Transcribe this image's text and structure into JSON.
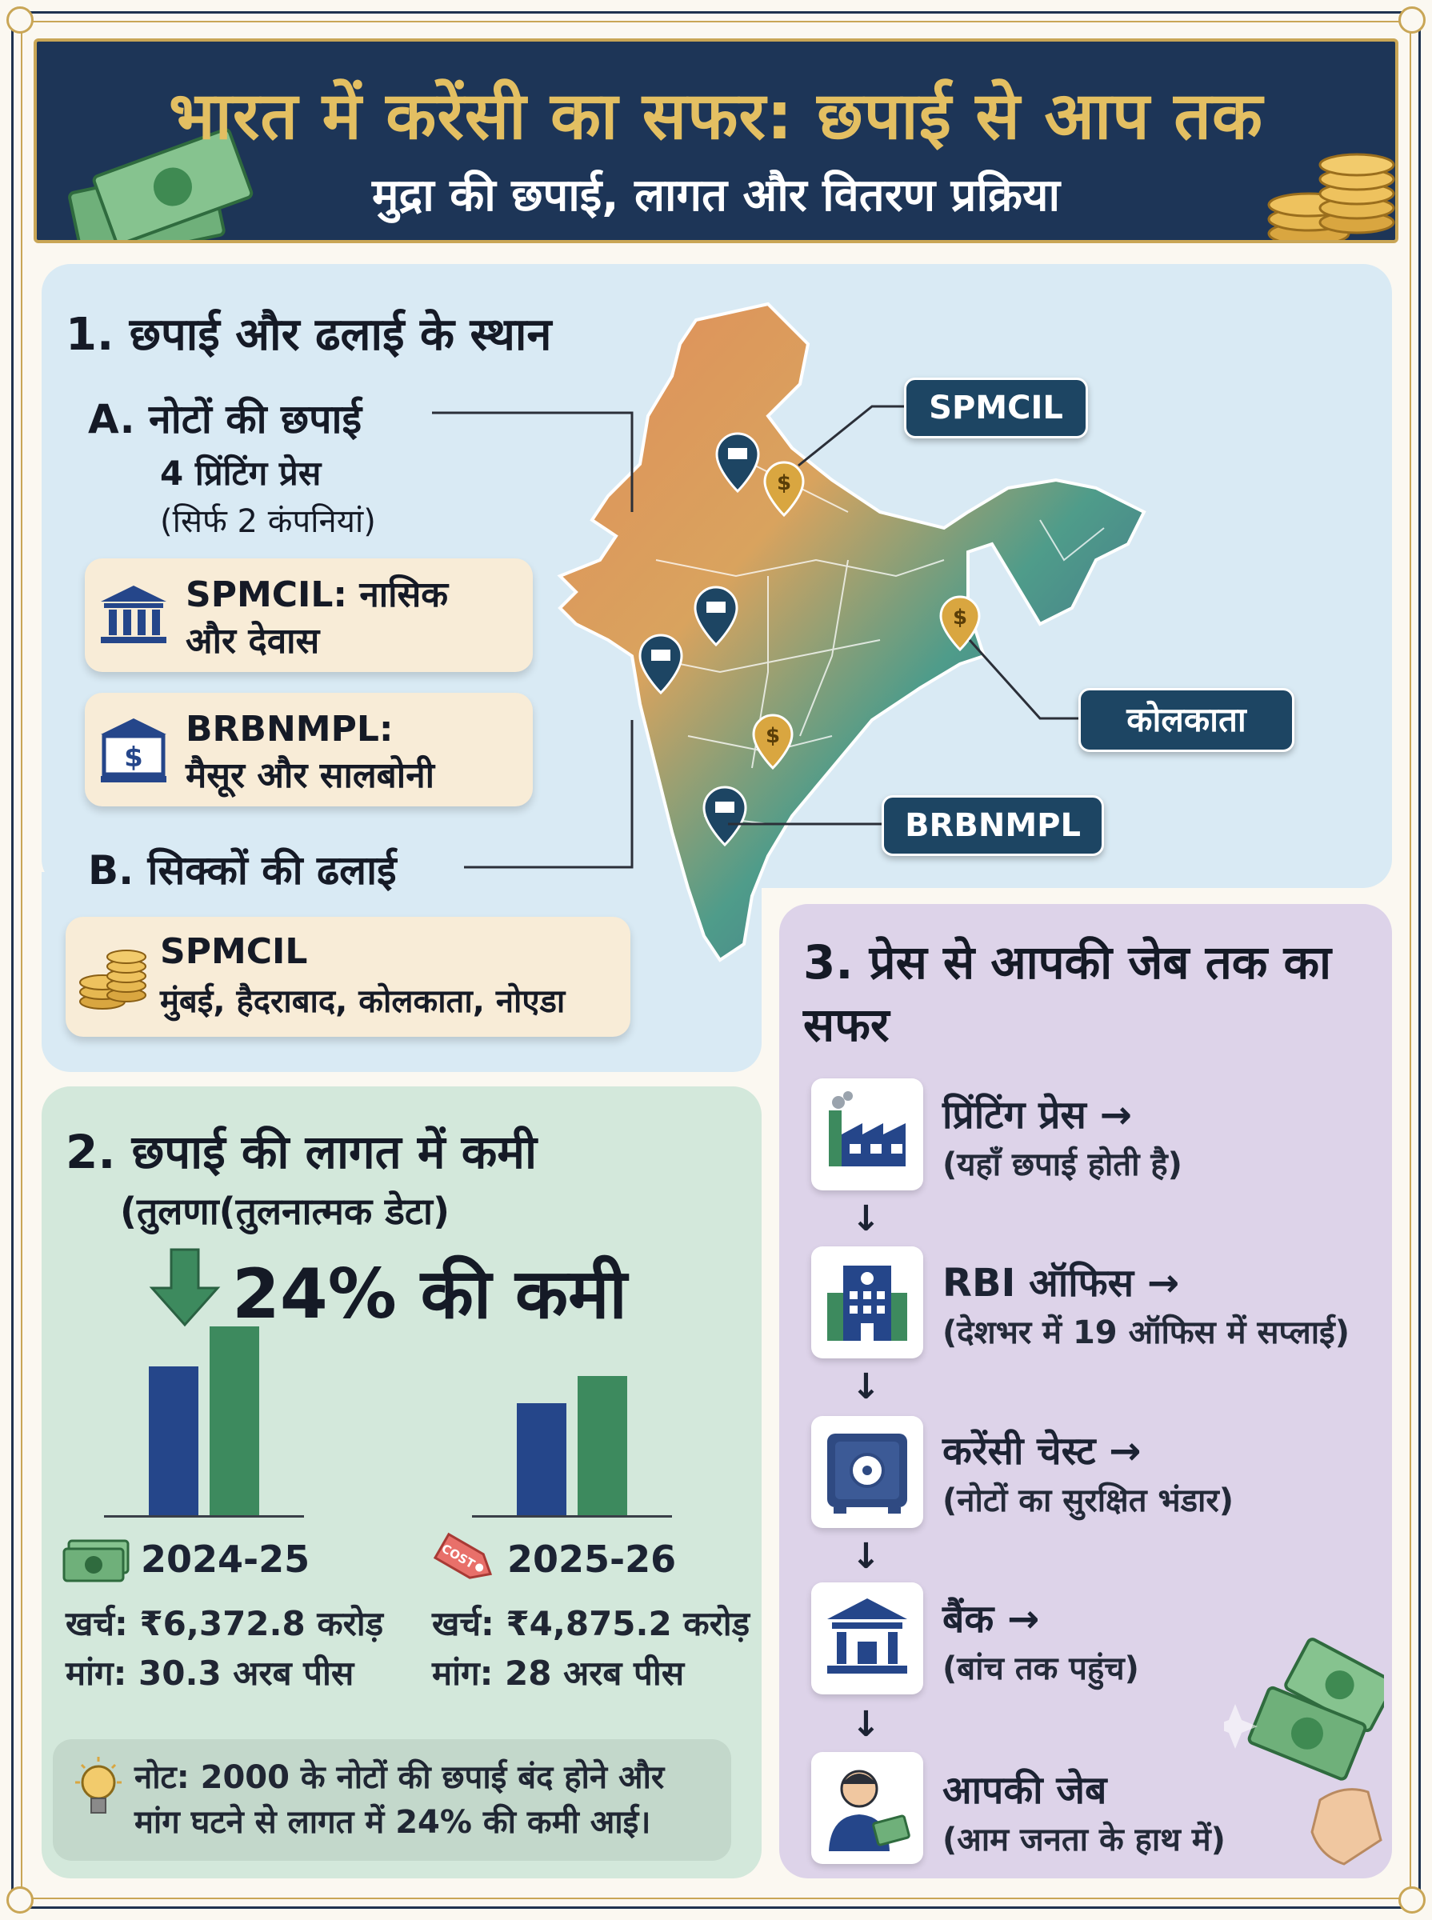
{
  "header": {
    "title": "भारत में करेंसी का सफर: छपाई से आप तक",
    "subtitle": "मुद्रा की छपाई, लागत और वितरण प्रक्रिया"
  },
  "section1": {
    "title": "1. छपाई और ढलाई के स्थान",
    "notes": {
      "title": "A. नोटों की छपाई",
      "presses": "4 प्रिंटिंग प्रेस",
      "companies": "(सिर्फ 2 कंपनियां)",
      "card1_line1": "SPMCIL: नासिक",
      "card1_line2": "और देवास",
      "card2_line1": "BRBNMPL:",
      "card2_line2": "मैसूर और सालबोनी"
    },
    "coins": {
      "title": "B. सिक्कों की ढलाई",
      "card_line1": "SPMCIL",
      "card_line2": "मुंबई, हैदराबाद, कोलकाता, नोएडा"
    },
    "map_labels": {
      "spmcil": "SPMCIL",
      "kolkata": "कोलकाता",
      "brbnmpl": "BRBNMPL"
    }
  },
  "section2": {
    "title": "2. छपाई की लागत में कमी",
    "subtitle": "(तुलणा(तुलनात्मक डेटा)",
    "headline": "24% की कमी",
    "year1": {
      "label": "2024-25",
      "cost": "खर्च: ₹6,372.8 करोड़",
      "demand": "मांग: 30.3 अरब पीस"
    },
    "year2": {
      "label": "2025-26",
      "cost": "खर्च: ₹4,875.2 करोड़",
      "demand": "मांग: 28 अरब पीस"
    },
    "note_line1": "नोट: 2000 के नोटों की छपाई बंद होने और",
    "note_line2": "मांग घटने से लागत में 24% की कमी आई।",
    "tag_text": "COST"
  },
  "section3": {
    "title": "3. प्रेस से आपकी जेब तक का सफर",
    "steps": [
      {
        "title": "प्रिंटिंग प्रेस →",
        "desc": "(यहाँ छपाई होती है)"
      },
      {
        "title": "RBI ऑफिस →",
        "desc": "(देशभर में 19 ऑफिस में सप्लाई)"
      },
      {
        "title": "करेंसी चेस्ट →",
        "desc": "(नोटों का सुरक्षित भंडार)"
      },
      {
        "title": "बैंक →",
        "desc": "(बांच तक पहुंच)"
      },
      {
        "title": "आपकी जेब",
        "desc": "(आम जनता के हाथ में)"
      }
    ],
    "arrow": "↓"
  },
  "colors": {
    "navy": "#1d3557",
    "gold": "#c9a656",
    "bar_blue": "#25468a",
    "bar_green": "#3d8a5e",
    "panel_blue": "#d9eaf4",
    "panel_green": "#d3e8db",
    "panel_purple": "#ddd3e9"
  }
}
